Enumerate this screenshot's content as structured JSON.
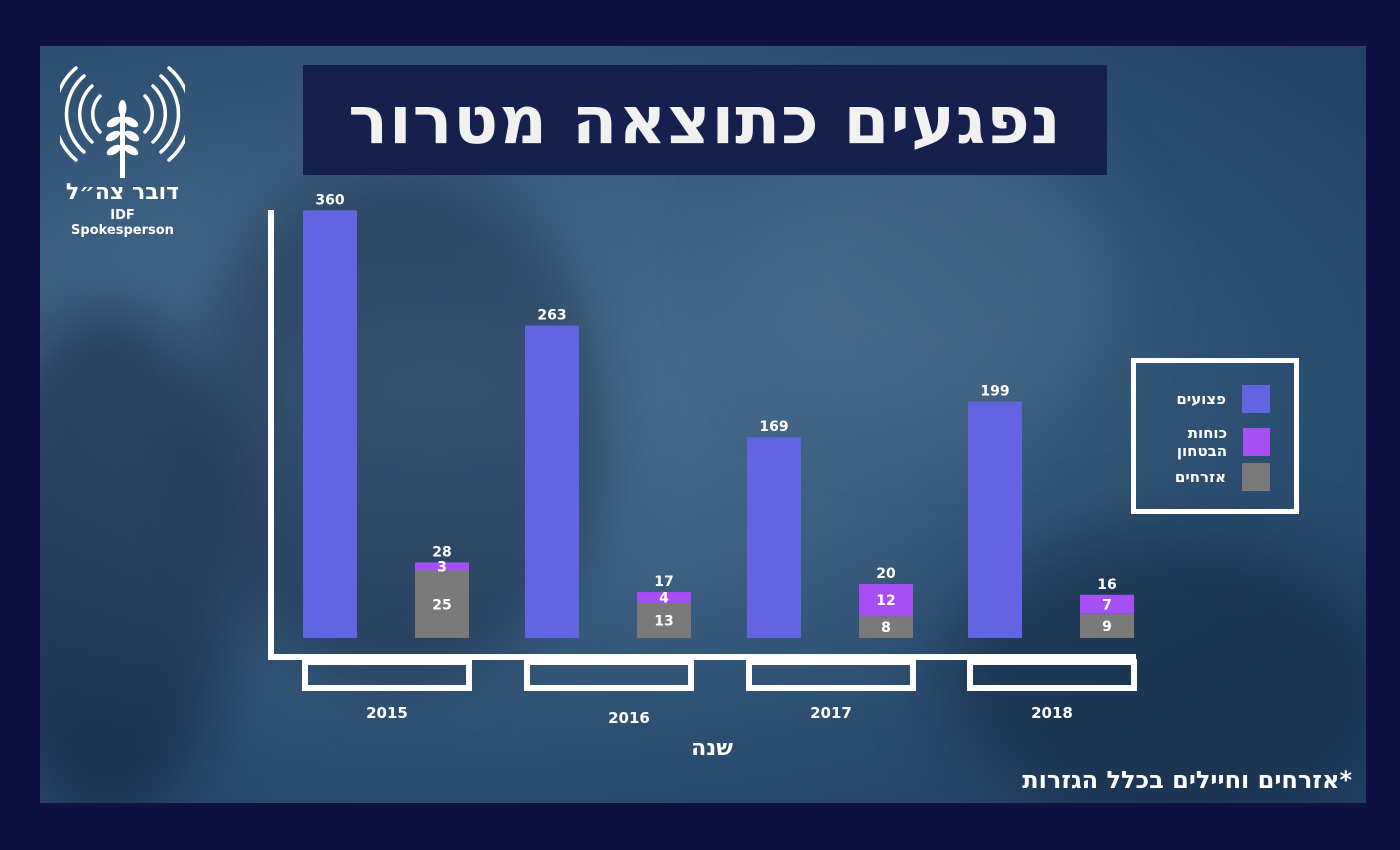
{
  "title": "נפגעים כתוצאה מטרור",
  "logo": {
    "hebrew": "דובר צה״ל",
    "english": "IDF Spokesperson"
  },
  "footnote": "*אזרחים וחיילים בכלל הגזרות",
  "colors": {
    "attacks": "#6264e2",
    "security": "#a64ff5",
    "civilians": "#7a7a7a",
    "frame": "#ffffff"
  },
  "chart_data": {
    "type": "bar",
    "title": "נפגעים כתוצאה מטרור",
    "xlabel": "שנה",
    "categories": [
      "2015",
      "2016",
      "2017",
      "2018"
    ],
    "attacks": [
      360,
      263,
      169,
      199
    ],
    "security_forces": [
      3,
      4,
      12,
      7
    ],
    "civilians": [
      25,
      13,
      8,
      9
    ],
    "casualty_totals": [
      28,
      17,
      20,
      16
    ],
    "legend": [
      "פצועים",
      "כוחות הבטחון",
      "אזרחים"
    ],
    "legend_position": "right",
    "grid": false
  }
}
